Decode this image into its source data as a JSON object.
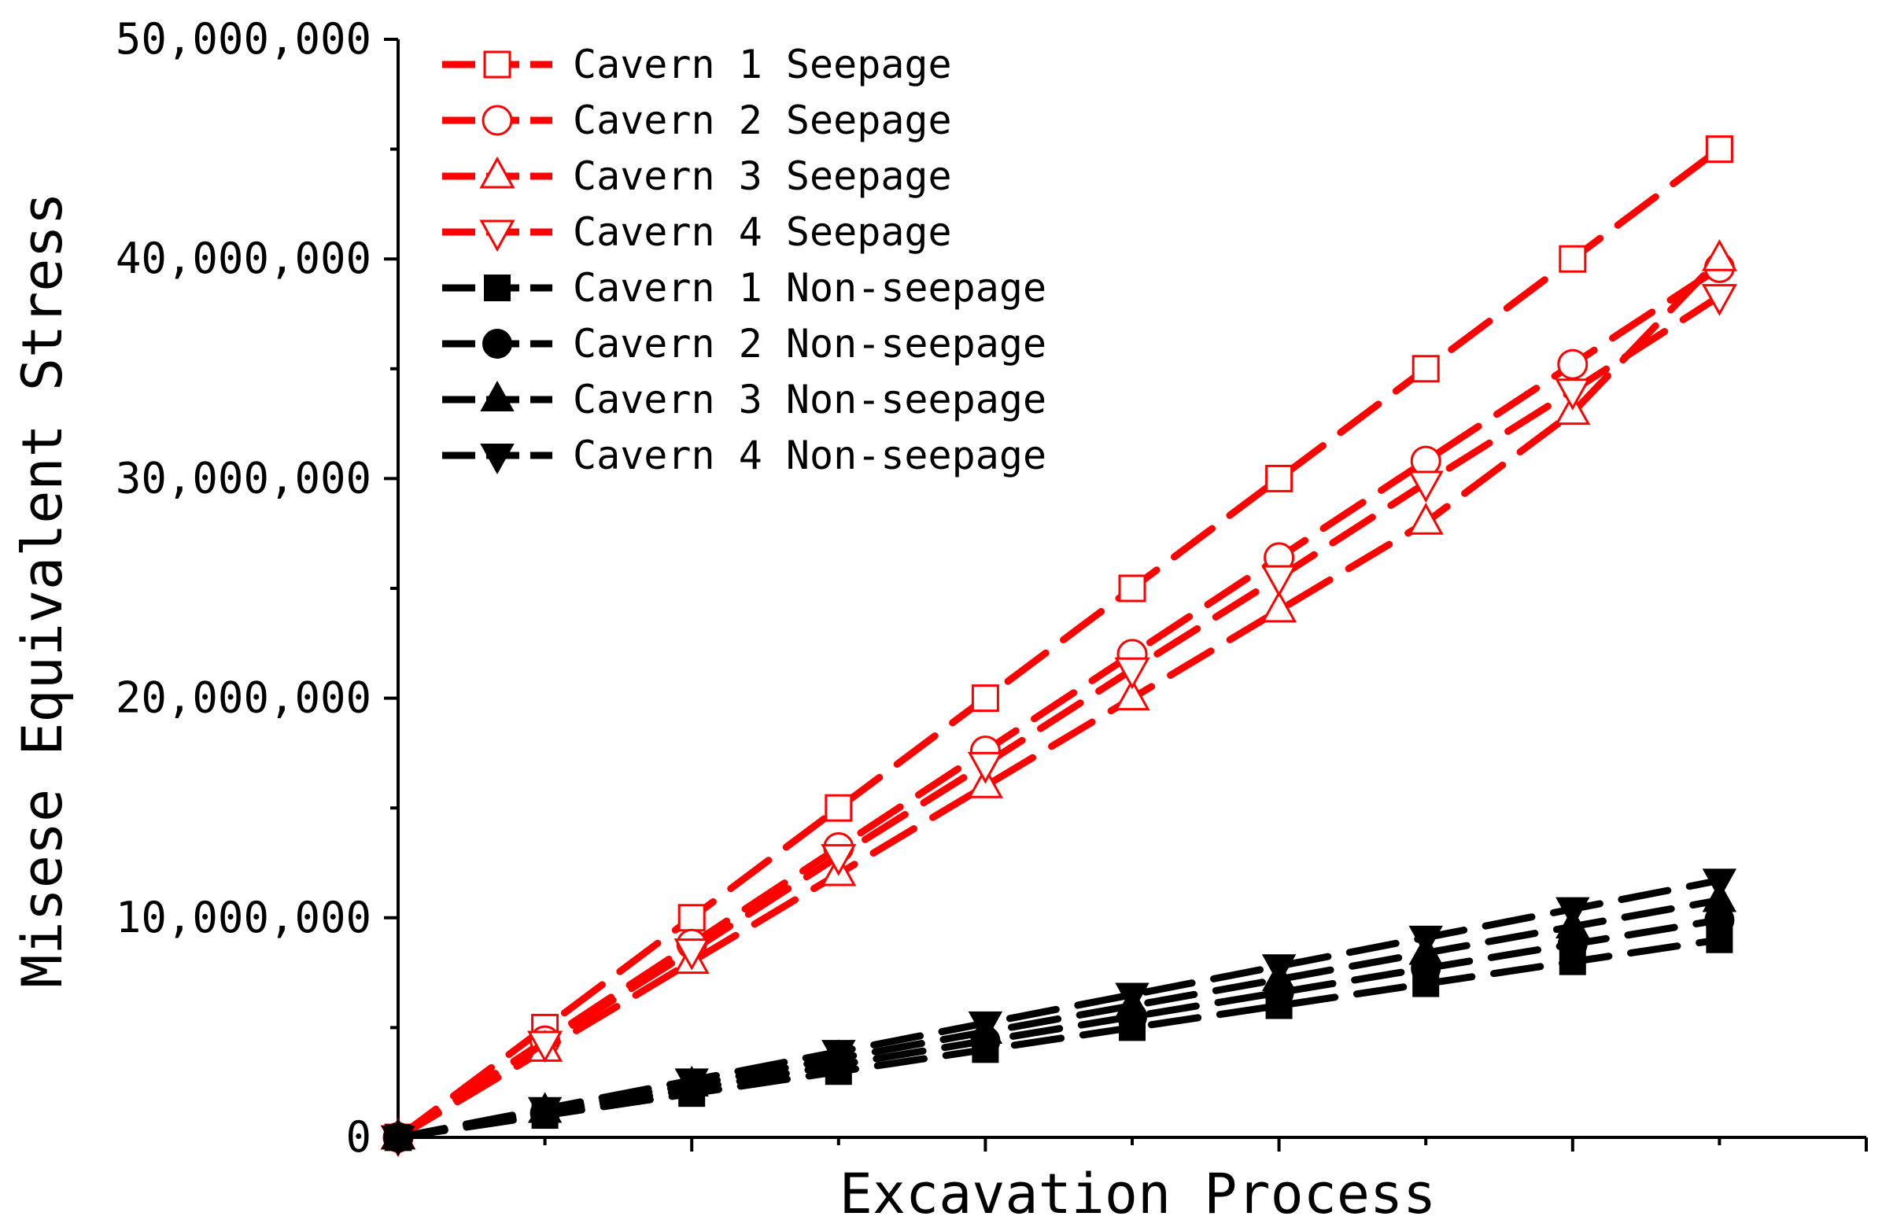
{
  "chart_data": {
    "type": "line",
    "title": "",
    "xlabel": "Excavation Process",
    "ylabel": "Misese Equivalent Stress",
    "x": [
      0,
      1,
      2,
      3,
      4,
      5,
      6,
      7,
      8,
      9
    ],
    "xlim": [
      0,
      10
    ],
    "ylim": [
      0,
      50000000
    ],
    "y_ticks": [
      0,
      10000000,
      20000000,
      30000000,
      40000000,
      50000000
    ],
    "y_tick_labels": [
      "0",
      "10,000,000",
      "20,000,000",
      "30,000,000",
      "40,000,000",
      "50,000,000"
    ],
    "grid": false,
    "legend_position": "top-left",
    "series": [
      {
        "name": "Cavern 1 Seepage",
        "color": "#ff0000",
        "marker": "square-open",
        "dashed": true,
        "values": [
          0,
          5000000,
          10000000,
          15000000,
          20000000,
          25000000,
          30000000,
          35000000,
          40000000,
          45000000
        ]
      },
      {
        "name": "Cavern 2 Seepage",
        "color": "#ff0000",
        "marker": "circle-open",
        "dashed": true,
        "values": [
          0,
          4400000,
          8800000,
          13200000,
          17600000,
          22000000,
          26400000,
          30800000,
          35200000,
          39600000
        ]
      },
      {
        "name": "Cavern 3 Seepage",
        "color": "#ff0000",
        "marker": "triangle-up-open",
        "dashed": true,
        "values": [
          0,
          4000000,
          8000000,
          12000000,
          16000000,
          20000000,
          24000000,
          28000000,
          33000000,
          40000000
        ]
      },
      {
        "name": "Cavern 4 Seepage",
        "color": "#ff0000",
        "marker": "triangle-down-open",
        "dashed": true,
        "values": [
          0,
          4300000,
          8500000,
          12800000,
          17000000,
          21300000,
          25500000,
          29800000,
          34000000,
          38300000
        ]
      },
      {
        "name": "Cavern 1 Non-seepage",
        "color": "#000000",
        "marker": "square-filled",
        "dashed": true,
        "values": [
          0,
          1000000,
          2000000,
          3000000,
          4000000,
          5000000,
          6000000,
          7000000,
          8000000,
          9000000
        ]
      },
      {
        "name": "Cavern 2 Non-seepage",
        "color": "#000000",
        "marker": "circle-filled",
        "dashed": true,
        "values": [
          0,
          1100000,
          2200000,
          3300000,
          4400000,
          5500000,
          6600000,
          7700000,
          8800000,
          9900000
        ]
      },
      {
        "name": "Cavern 3 Non-seepage",
        "color": "#000000",
        "marker": "triangle-up-filled",
        "dashed": true,
        "values": [
          0,
          1200000,
          2400000,
          3600000,
          4800000,
          6000000,
          7200000,
          8400000,
          9600000,
          10800000
        ]
      },
      {
        "name": "Cavern 4 Non-seepage",
        "color": "#000000",
        "marker": "triangle-down-filled",
        "dashed": true,
        "values": [
          0,
          1300000,
          2600000,
          3900000,
          5200000,
          6500000,
          7800000,
          9100000,
          10400000,
          11700000
        ]
      }
    ]
  }
}
